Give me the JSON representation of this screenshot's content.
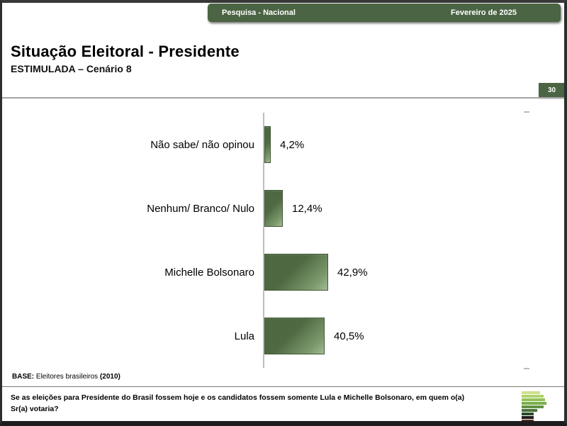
{
  "header": {
    "left_label": "Pesquisa - Nacional",
    "right_label": "Fevereiro de 2025",
    "bg_color": "#4b6443"
  },
  "title": {
    "main": "Situação Eleitoral - Presidente",
    "subtitle": "ESTIMULADA – Cenário 8"
  },
  "page_number": "30",
  "chart_data": {
    "type": "bar",
    "orientation": "horizontal",
    "categories": [
      "Não sabe/ não opinou",
      "Nenhum/ Branco/ Nulo",
      "Michelle Bolsonaro",
      "Lula"
    ],
    "values": [
      4.2,
      12.4,
      42.9,
      40.5
    ],
    "value_labels": [
      "4,2%",
      "12,4%",
      "42,9%",
      "40,5%"
    ],
    "title": "Situação Eleitoral - Presidente — ESTIMULADA – Cenário 8",
    "xlabel": "",
    "ylabel": "",
    "xlim": [
      0,
      100
    ],
    "grid": false,
    "legend": false,
    "bar_color_dark": "#4d6741",
    "bar_color_light": "#a3bb95"
  },
  "base_note": {
    "prefix": "BASE:",
    "text": " Eleitores brasileiros ",
    "suffix": "(2010)"
  },
  "question": "Se as eleições para Presidente do Brasil fossem hoje e os candidatos fossem somente Lula e Michelle Bolsonaro, em quem o(a) Sr(a) votaria?",
  "logo_bars": [
    {
      "width": 26,
      "color": "#cfe08d"
    },
    {
      "width": 31,
      "color": "#b0d26c"
    },
    {
      "width": 33,
      "color": "#93c258"
    },
    {
      "width": 35,
      "color": "#7bad4b"
    },
    {
      "width": 31,
      "color": "#639343"
    },
    {
      "width": 22,
      "color": "#4a7339"
    },
    {
      "width": 17,
      "color": "#2c4a2c"
    },
    {
      "width": 17,
      "color": "#1b1b1b"
    },
    {
      "width": 17,
      "color": "#5e2a24"
    }
  ]
}
